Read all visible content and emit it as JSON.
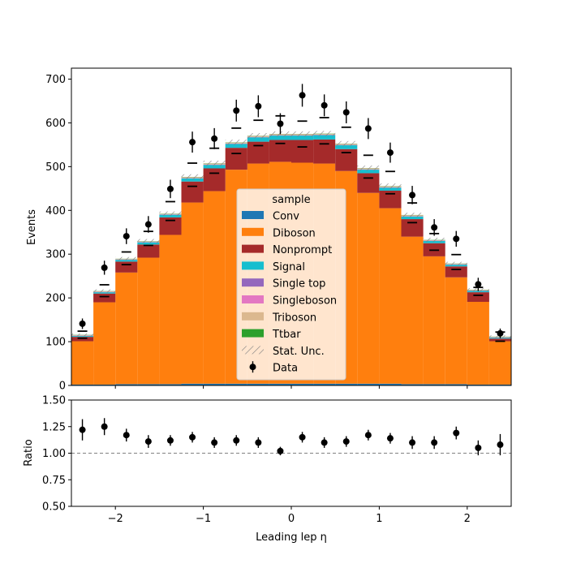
{
  "chart_data": [
    {
      "type": "bar",
      "stacked": true,
      "xlim": [
        -2.5,
        2.5
      ],
      "ylim": [
        0,
        725
      ],
      "ylabel": "Events",
      "yticks": [
        0,
        100,
        200,
        300,
        400,
        500,
        600,
        700
      ],
      "bin_edges": [
        -2.5,
        -2.25,
        -2.0,
        -1.75,
        -1.5,
        -1.25,
        -1.0,
        -0.75,
        -0.5,
        -0.25,
        0.0,
        0.25,
        0.5,
        0.75,
        1.0,
        1.25,
        1.5,
        1.75,
        2.0,
        2.25,
        2.5
      ],
      "series": [
        {
          "name": "Conv",
          "color": "#1f77b4",
          "values": [
            2,
            2,
            3,
            3,
            3,
            4,
            4,
            4,
            4,
            4,
            4,
            4,
            4,
            4,
            4,
            3,
            3,
            3,
            2,
            2
          ]
        },
        {
          "name": "Diboson",
          "color": "#ff7f0e",
          "values": [
            99,
            188,
            255,
            289,
            341,
            414,
            440,
            489,
            503,
            507,
            505,
            503,
            486,
            436,
            401,
            337,
            292,
            244,
            189,
            99
          ]
        },
        {
          "name": "Nonprompt",
          "color": "#a52a2a",
          "values": [
            10,
            20,
            25,
            30,
            40,
            48,
            52,
            50,
            50,
            50,
            52,
            55,
            50,
            45,
            40,
            40,
            30,
            25,
            22,
            6
          ]
        },
        {
          "name": "Signal",
          "color": "#17becf",
          "values": [
            2,
            3,
            4,
            5,
            6,
            7,
            8,
            9,
            10,
            10,
            10,
            10,
            9,
            8,
            7,
            6,
            5,
            4,
            3,
            2
          ]
        },
        {
          "name": "Single top",
          "color": "#9467bd",
          "values": [
            0.5,
            0.5,
            0.5,
            0.5,
            0.5,
            0.5,
            0.5,
            0.5,
            0.5,
            0.5,
            0.5,
            0.5,
            0.5,
            0.5,
            0.5,
            0.5,
            0.5,
            0.5,
            0.5,
            0.5
          ]
        },
        {
          "name": "Singleboson",
          "color": "#e377c2",
          "values": [
            0.5,
            0.5,
            0.5,
            0.5,
            0.5,
            0.5,
            0.5,
            0.5,
            0.5,
            0.5,
            0.5,
            0.5,
            0.5,
            0.5,
            0.5,
            0.5,
            0.5,
            0.5,
            0.5,
            0.5
          ]
        },
        {
          "name": "Triboson",
          "color": "#dbb88f",
          "values": [
            1,
            1,
            1,
            1,
            1,
            2,
            2,
            2,
            2,
            2,
            2,
            2,
            2,
            2,
            2,
            2,
            1,
            1,
            1,
            1
          ]
        },
        {
          "name": "Ttbar",
          "color": "#2ca02c",
          "values": [
            0.5,
            0.5,
            0.5,
            0.5,
            0.5,
            0.5,
            0.5,
            0.5,
            0.5,
            0.5,
            0.5,
            0.5,
            0.5,
            0.5,
            0.5,
            0.5,
            0.5,
            0.5,
            0.5,
            0.5
          ]
        }
      ],
      "stat_unc": {
        "name": "Stat. Unc.",
        "values": [
          3,
          4,
          4,
          5,
          5,
          6,
          6,
          6,
          6,
          6,
          6,
          6,
          6,
          6,
          6,
          5,
          5,
          4,
          4,
          3
        ]
      },
      "data": {
        "name": "Data",
        "x": [
          -2.375,
          -2.125,
          -1.875,
          -1.625,
          -1.375,
          -1.125,
          -0.875,
          -0.625,
          -0.375,
          -0.125,
          0.125,
          0.375,
          0.625,
          0.875,
          1.125,
          1.375,
          1.625,
          1.875,
          2.125,
          2.375
        ],
        "y": [
          141,
          269,
          341,
          368,
          449,
          556,
          564,
          628,
          638,
          598,
          663,
          640,
          624,
          587,
          532,
          435,
          361,
          335,
          231,
          119
        ],
        "yerr": [
          12,
          16,
          18,
          19,
          21,
          24,
          24,
          25,
          25,
          24,
          26,
          25,
          25,
          24,
          23,
          21,
          19,
          18,
          15,
          11
        ]
      },
      "markers": {
        "y": [
          124,
          230,
          305,
          352,
          420,
          508,
          542,
          588,
          606,
          616,
          604,
          612,
          590,
          526,
          489,
          417,
          347,
          299,
          224,
          122
        ]
      },
      "markers_lower": {
        "y": [
          108,
          203,
          276,
          320,
          377,
          455,
          485,
          530,
          548,
          553,
          545,
          552,
          532,
          474,
          438,
          372,
          309,
          265,
          206,
          101
        ]
      },
      "legend": {
        "title": "sample",
        "placement": "center-bottom"
      }
    },
    {
      "type": "scatter",
      "xlim": [
        -2.5,
        2.5
      ],
      "ylim": [
        0.5,
        1.5
      ],
      "xlabel": "Leading lep η",
      "ylabel": "Ratio",
      "yticks": [
        "0.50",
        "0.75",
        "1.00",
        "1.25",
        "1.50"
      ],
      "yticks_values": [
        0.5,
        0.75,
        1.0,
        1.25,
        1.5
      ],
      "xticks": [
        -2,
        -1,
        0,
        1,
        2
      ],
      "xtick_labels": [
        "−2",
        "−1",
        "0",
        "1",
        "2"
      ],
      "reference_line": 1.0,
      "x": [
        -2.375,
        -2.125,
        -1.875,
        -1.625,
        -1.375,
        -1.125,
        -0.875,
        -0.625,
        -0.375,
        -0.125,
        0.125,
        0.375,
        0.625,
        0.875,
        1.125,
        1.375,
        1.625,
        1.875,
        2.125,
        2.375
      ],
      "y": [
        1.22,
        1.25,
        1.17,
        1.11,
        1.12,
        1.15,
        1.1,
        1.12,
        1.1,
        1.02,
        1.15,
        1.1,
        1.11,
        1.17,
        1.14,
        1.1,
        1.1,
        1.19,
        1.05,
        1.08
      ],
      "yerr": [
        0.1,
        0.08,
        0.06,
        0.06,
        0.05,
        0.05,
        0.05,
        0.05,
        0.05,
        0.04,
        0.05,
        0.05,
        0.05,
        0.05,
        0.05,
        0.06,
        0.06,
        0.06,
        0.07,
        0.1
      ]
    }
  ]
}
